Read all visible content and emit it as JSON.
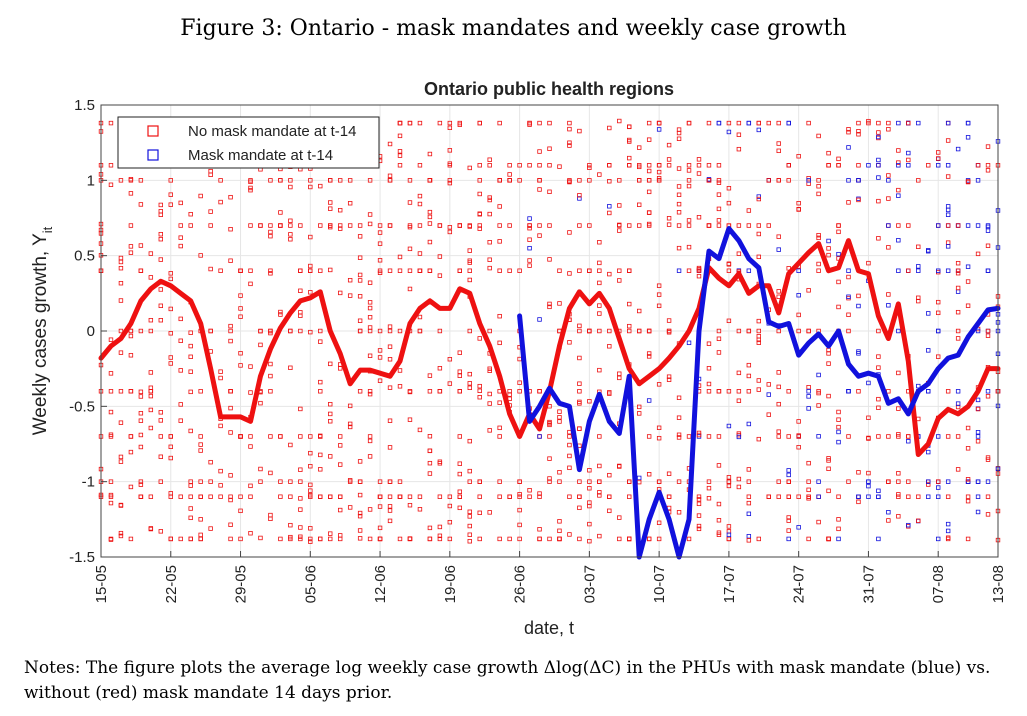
{
  "figure_title": "Figure 3: Ontario - mask mandates and weekly case growth",
  "notes": "Notes: The figure plots the average log weekly case growth Δlog(ΔC) in the PHUs with mask mandate (blue) vs. without (red) mask mandate 14 days prior.",
  "colors": {
    "no_mandate": "#ee1111",
    "mandate": "#1111dd"
  },
  "chart_data": {
    "type": "line",
    "title": "Ontario public health regions",
    "xlabel": "date, t",
    "ylabel": "Weekly cases growth, Y",
    "ylabel_subscript": "it",
    "xlim": [
      0,
      90
    ],
    "ylim": [
      -1.5,
      1.5
    ],
    "x_ticks": [
      0,
      7,
      14,
      21,
      28,
      35,
      42,
      49,
      56,
      63,
      70,
      77,
      84,
      90
    ],
    "x_tick_labels": [
      "15-05",
      "22-05",
      "29-05",
      "05-06",
      "12-06",
      "19-06",
      "26-06",
      "03-07",
      "10-07",
      "17-07",
      "24-07",
      "31-07",
      "07-08",
      "13-08"
    ],
    "y_ticks": [
      -1.5,
      -1,
      -0.5,
      0,
      0.5,
      1,
      1.5
    ],
    "y_tick_labels": [
      "-1.5",
      "-1",
      "-0.5",
      "0",
      "0.5",
      "1",
      "1.5"
    ],
    "grid": true,
    "legend_position": "top-left",
    "legend": [
      {
        "label": "No mask mandate at t-14",
        "color": "#ee1111"
      },
      {
        "label": "Mask mandate at t-14",
        "color": "#1111dd"
      }
    ],
    "series": [
      {
        "name": "No mask mandate at t-14",
        "color": "#ee1111",
        "x": [
          0,
          1,
          2,
          3,
          4,
          5,
          6,
          7,
          8,
          9,
          10,
          11,
          12,
          13,
          14,
          15,
          16,
          17,
          18,
          19,
          20,
          21,
          22,
          23,
          24,
          25,
          26,
          27,
          28,
          29,
          30,
          31,
          32,
          33,
          34,
          35,
          36,
          37,
          38,
          39,
          40,
          41,
          42,
          43,
          44,
          45,
          46,
          47,
          48,
          49,
          50,
          51,
          52,
          53,
          54,
          55,
          56,
          57,
          58,
          59,
          60,
          61,
          62,
          63,
          64,
          65,
          66,
          67,
          68,
          69,
          70,
          71,
          72,
          73,
          74,
          75,
          76,
          77,
          78,
          79,
          80,
          81,
          82,
          83,
          84,
          85,
          86,
          87,
          88,
          89,
          90
        ],
        "y": [
          -0.18,
          -0.1,
          -0.05,
          0.05,
          0.2,
          0.28,
          0.33,
          0.3,
          0.25,
          0.2,
          0.05,
          -0.25,
          -0.57,
          -0.57,
          -0.57,
          -0.6,
          -0.3,
          -0.12,
          0.02,
          0.12,
          0.2,
          0.22,
          0.26,
          0.0,
          -0.15,
          -0.35,
          -0.26,
          -0.26,
          -0.28,
          -0.3,
          -0.2,
          0.05,
          0.15,
          0.2,
          0.15,
          0.15,
          0.28,
          0.25,
          0.05,
          -0.1,
          -0.3,
          -0.55,
          -0.7,
          -0.55,
          -0.65,
          -0.4,
          -0.1,
          0.15,
          0.26,
          0.18,
          0.25,
          0.15,
          -0.05,
          -0.25,
          -0.35,
          -0.3,
          -0.25,
          -0.18,
          -0.1,
          0.0,
          0.15,
          0.42,
          0.35,
          0.3,
          0.38,
          0.25,
          0.3,
          0.3,
          0.12,
          0.38,
          0.45,
          0.52,
          0.58,
          0.4,
          0.42,
          0.6,
          0.4,
          0.38,
          0.1,
          -0.05,
          0.18,
          -0.2,
          -0.82,
          -0.75,
          -0.58,
          -0.52,
          -0.55,
          -0.5,
          -0.4,
          -0.25,
          -0.25
        ]
      },
      {
        "name": "Mask mandate at t-14",
        "color": "#1111dd",
        "x": [
          42,
          43,
          44,
          45,
          46,
          47,
          48,
          49,
          50,
          51,
          52,
          53,
          54,
          55,
          56,
          57,
          58,
          59,
          60,
          61,
          62,
          63,
          64,
          65,
          66,
          67,
          68,
          69,
          70,
          71,
          72,
          73,
          74,
          75,
          76,
          77,
          78,
          79,
          80,
          81,
          82,
          83,
          84,
          85,
          86,
          87,
          88,
          89,
          90
        ],
        "y": [
          0.1,
          -0.6,
          -0.5,
          -0.38,
          -0.48,
          -0.5,
          -0.92,
          -0.6,
          -0.42,
          -0.6,
          -0.68,
          -0.3,
          -1.5,
          -1.25,
          -1.07,
          -1.25,
          -1.5,
          -1.25,
          0.0,
          0.53,
          0.48,
          0.68,
          0.6,
          0.48,
          0.42,
          0.06,
          0.03,
          0.05,
          -0.16,
          -0.08,
          -0.02,
          -0.1,
          0.0,
          -0.22,
          -0.3,
          -0.28,
          -0.3,
          -0.48,
          -0.45,
          -0.55,
          -0.4,
          -0.35,
          -0.25,
          -0.18,
          -0.16,
          -0.04,
          0.05,
          0.14,
          0.15
        ]
      }
    ]
  }
}
